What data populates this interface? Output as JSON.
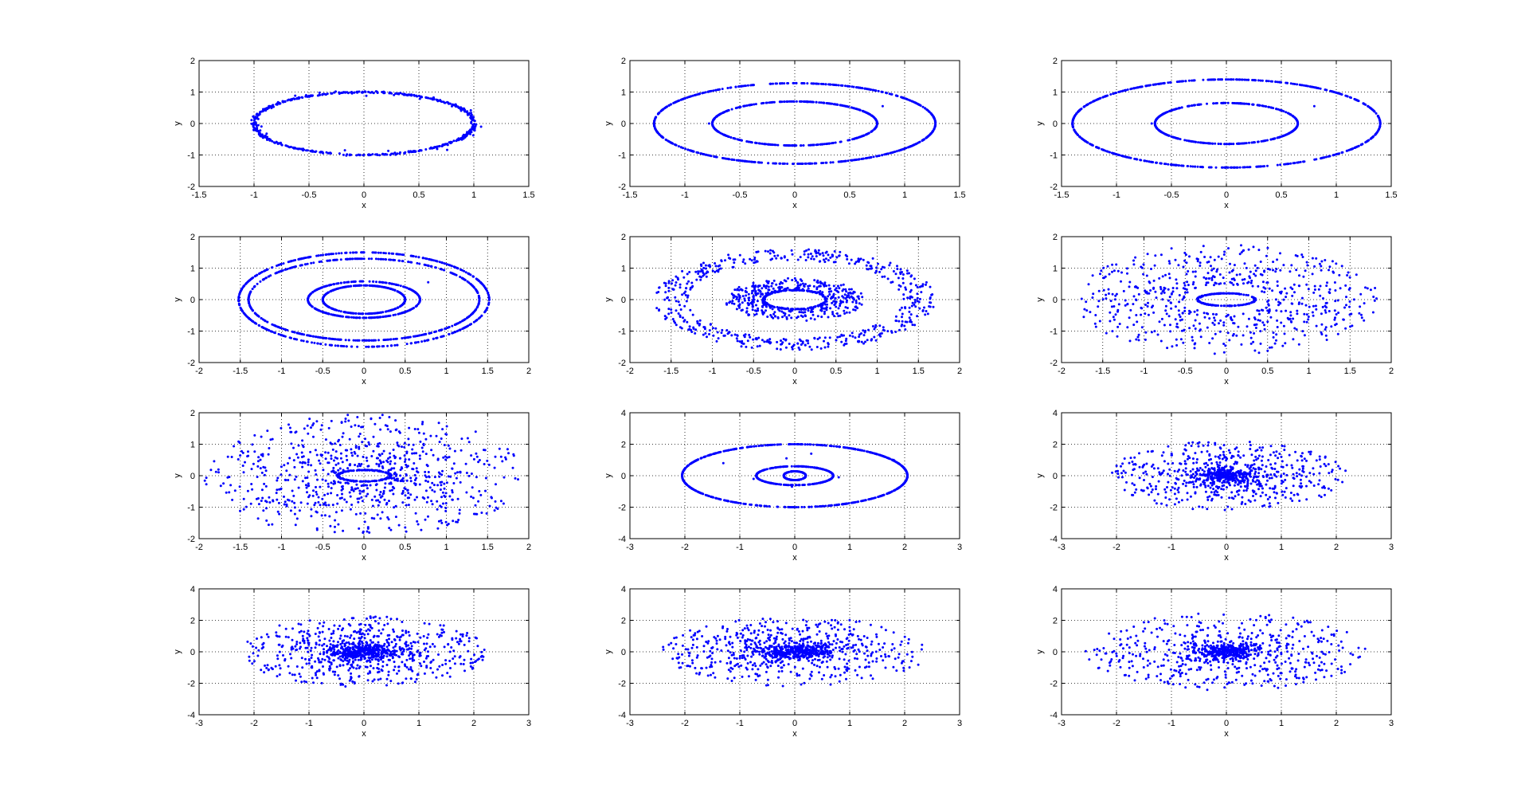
{
  "figure": {
    "background": "#ffffff",
    "marker_color": "#0000ff"
  },
  "chart_data": [
    {
      "type": "scatter",
      "xlabel": "x",
      "ylabel": "y",
      "xlim": [
        -1.5,
        1.5
      ],
      "ylim": [
        -2,
        2
      ],
      "xticks": [
        "-1.5",
        "-1",
        "-0.5",
        "0",
        "0.5",
        "1",
        "1.5"
      ],
      "yticks": [
        "-2",
        "-1",
        "0",
        "1",
        "2"
      ],
      "grid": true,
      "points": {
        "rings": [
          {
            "a": 1.0,
            "b": 1.0,
            "count": 520,
            "jitter": 0.012
          }
        ],
        "scatter_count": 30,
        "scatter_jitter": 0.06
      }
    },
    {
      "type": "scatter",
      "xlabel": "x",
      "ylabel": "y",
      "xlim": [
        -1.5,
        1.5
      ],
      "ylim": [
        -2,
        2
      ],
      "xticks": [
        "-1.5",
        "-1",
        "-0.5",
        "0",
        "0.5",
        "1",
        "1.5"
      ],
      "yticks": [
        "-2",
        "-1",
        "0",
        "1",
        "2"
      ],
      "grid": true,
      "points": {
        "rings": [
          {
            "a": 1.28,
            "b": 1.28,
            "count": 600,
            "jitter": 0.0
          },
          {
            "a": 0.75,
            "b": 0.7,
            "count": 420,
            "jitter": 0.0
          }
        ],
        "extra": [
          [
            -0.78,
            0.0
          ],
          [
            0.8,
            0.55
          ]
        ]
      }
    },
    {
      "type": "scatter",
      "xlabel": "x",
      "ylabel": "y",
      "xlim": [
        -1.5,
        1.5
      ],
      "ylim": [
        -2,
        2
      ],
      "xticks": [
        "-1.5",
        "-1",
        "-0.5",
        "0",
        "0.5",
        "1",
        "1.5"
      ],
      "yticks": [
        "-2",
        "-1",
        "0",
        "1",
        "2"
      ],
      "grid": true,
      "points": {
        "rings": [
          {
            "a": 1.4,
            "b": 1.4,
            "count": 620,
            "jitter": 0.0
          },
          {
            "a": 0.65,
            "b": 0.65,
            "count": 400,
            "jitter": 0.0
          }
        ],
        "extra": [
          [
            -0.68,
            0.0
          ],
          [
            0.8,
            0.55
          ]
        ]
      }
    },
    {
      "type": "scatter",
      "xlabel": "x",
      "ylabel": "y",
      "xlim": [
        -2,
        2
      ],
      "ylim": [
        -2,
        2
      ],
      "xticks": [
        "-2",
        "-1.5",
        "-1",
        "-0.5",
        "0",
        "0.5",
        "1",
        "1.5",
        "2"
      ],
      "yticks": [
        "-2",
        "-1",
        "0",
        "1",
        "2"
      ],
      "grid": true,
      "points": {
        "rings": [
          {
            "a": 1.52,
            "b": 1.5,
            "count": 420,
            "jitter": 0.0
          },
          {
            "a": 1.4,
            "b": 1.3,
            "count": 420,
            "jitter": 0.0
          },
          {
            "a": 0.68,
            "b": 0.58,
            "count": 300,
            "jitter": 0.0
          },
          {
            "a": 0.5,
            "b": 0.45,
            "count": 300,
            "jitter": 0.0
          }
        ],
        "extra": [
          [
            0.78,
            0.55
          ]
        ]
      }
    },
    {
      "type": "scatter",
      "xlabel": "x",
      "ylabel": "y",
      "xlim": [
        -2,
        2
      ],
      "ylim": [
        -2,
        2
      ],
      "xticks": [
        "-2",
        "-1.5",
        "-1",
        "-0.5",
        "0",
        "0.5",
        "1",
        "1.5",
        "2"
      ],
      "yticks": [
        "-2",
        "-1",
        "0",
        "1",
        "2"
      ],
      "grid": true,
      "points": {
        "bands": [
          {
            "a_min": 1.3,
            "a_max": 1.7,
            "b_ratio": 0.95,
            "count": 520
          },
          {
            "a_min": 0.4,
            "a_max": 0.85,
            "b_ratio": 0.8,
            "count": 380
          }
        ],
        "rings": [
          {
            "a": 0.38,
            "b": 0.3,
            "count": 220,
            "jitter": 0.02
          }
        ]
      }
    },
    {
      "type": "scatter",
      "xlabel": "x",
      "ylabel": "y",
      "xlim": [
        -2,
        2
      ],
      "ylim": [
        -2,
        2
      ],
      "xticks": [
        "-2",
        "-1.5",
        "-1",
        "-0.5",
        "0",
        "0.5",
        "1",
        "1.5",
        "2"
      ],
      "yticks": [
        "-2",
        "-1",
        "0",
        "1",
        "2"
      ],
      "grid": true,
      "points": {
        "bands": [
          {
            "a_min": 0.5,
            "a_max": 1.85,
            "b_ratio": 0.95,
            "count": 620
          }
        ],
        "rings": [
          {
            "a": 0.35,
            "b": 0.2,
            "count": 200,
            "jitter": 0.015
          }
        ]
      }
    },
    {
      "type": "scatter",
      "xlabel": "x",
      "ylabel": "y",
      "xlim": [
        -2,
        2
      ],
      "ylim": [
        -2,
        2
      ],
      "xticks": [
        "-2",
        "-1.5",
        "-1",
        "-0.5",
        "0",
        "0.5",
        "1",
        "1.5",
        "2"
      ],
      "yticks": [
        "-2",
        "-1",
        "0",
        "1",
        "2"
      ],
      "grid": true,
      "points": {
        "bands": [
          {
            "a_min": 0.3,
            "a_max": 1.95,
            "b_ratio": 1.0,
            "count": 760
          }
        ],
        "rings": [
          {
            "a": 0.32,
            "b": 0.18,
            "count": 180,
            "jitter": 0.03
          }
        ]
      }
    },
    {
      "type": "scatter",
      "xlabel": "x",
      "ylabel": "y",
      "xlim": [
        -3,
        3
      ],
      "ylim": [
        -4,
        4
      ],
      "xticks": [
        "-3",
        "-2",
        "-1",
        "0",
        "1",
        "2",
        "3"
      ],
      "yticks": [
        "-4",
        "-2",
        "0",
        "2",
        "4"
      ],
      "grid": true,
      "points": {
        "rings": [
          {
            "a": 2.05,
            "b": 2.0,
            "count": 620,
            "jitter": 0.0
          },
          {
            "a": 0.7,
            "b": 0.6,
            "count": 300,
            "jitter": 0.0
          },
          {
            "a": 0.2,
            "b": 0.28,
            "count": 160,
            "jitter": 0.01
          }
        ],
        "extra": [
          [
            -1.3,
            0.8
          ],
          [
            -0.15,
            1.1
          ],
          [
            0.3,
            1.4
          ],
          [
            -0.05,
            -0.7
          ],
          [
            0.8,
            -0.1
          ],
          [
            -0.75,
            -0.2
          ],
          [
            1.8,
            1.0
          ]
        ]
      }
    },
    {
      "type": "scatter",
      "xlabel": "x",
      "ylabel": "y",
      "xlim": [
        -3,
        3
      ],
      "ylim": [
        -4,
        4
      ],
      "xticks": [
        "-3",
        "-2",
        "-1",
        "0",
        "1",
        "2",
        "3"
      ],
      "yticks": [
        "-4",
        "-2",
        "0",
        "2",
        "4"
      ],
      "grid": true,
      "points": {
        "bands": [
          {
            "a_min": 0.3,
            "a_max": 2.2,
            "b_ratio": 1.0,
            "count": 560
          }
        ],
        "core": {
          "a": 0.5,
          "b": 0.45,
          "count": 260
        }
      }
    },
    {
      "type": "scatter",
      "xlabel": "x",
      "ylabel": "y",
      "xlim": [
        -3,
        3
      ],
      "ylim": [
        -4,
        4
      ],
      "xticks": [
        "-3",
        "-2",
        "-1",
        "0",
        "1",
        "2",
        "3"
      ],
      "yticks": [
        "-4",
        "-2",
        "0",
        "2",
        "4"
      ],
      "grid": true,
      "points": {
        "bands": [
          {
            "a_min": 0.3,
            "a_max": 2.3,
            "b_ratio": 0.98,
            "count": 620
          }
        ],
        "core": {
          "a": 0.6,
          "b": 0.5,
          "count": 320
        }
      }
    },
    {
      "type": "scatter",
      "xlabel": "x",
      "ylabel": "y",
      "xlim": [
        -3,
        3
      ],
      "ylim": [
        -4,
        4
      ],
      "xticks": [
        "-3",
        "-2",
        "-1",
        "0",
        "1",
        "2",
        "3"
      ],
      "yticks": [
        "-4",
        "-2",
        "0",
        "2",
        "4"
      ],
      "grid": true,
      "points": {
        "bands": [
          {
            "a_min": 0.3,
            "a_max": 2.45,
            "b_ratio": 0.9,
            "count": 620
          }
        ],
        "core": {
          "a": 0.6,
          "b": 0.45,
          "count": 280
        }
      }
    },
    {
      "type": "scatter",
      "xlabel": "x",
      "ylabel": "y",
      "xlim": [
        -3,
        3
      ],
      "ylim": [
        -4,
        4
      ],
      "xticks": [
        "-3",
        "-2",
        "-1",
        "0",
        "1",
        "2",
        "3"
      ],
      "yticks": [
        "-4",
        "-2",
        "0",
        "2",
        "4"
      ],
      "grid": true,
      "points": {
        "bands": [
          {
            "a_min": 0.3,
            "a_max": 2.6,
            "b_ratio": 0.95,
            "count": 560
          }
        ],
        "core": {
          "a": 0.5,
          "b": 0.45,
          "count": 240
        }
      }
    }
  ]
}
